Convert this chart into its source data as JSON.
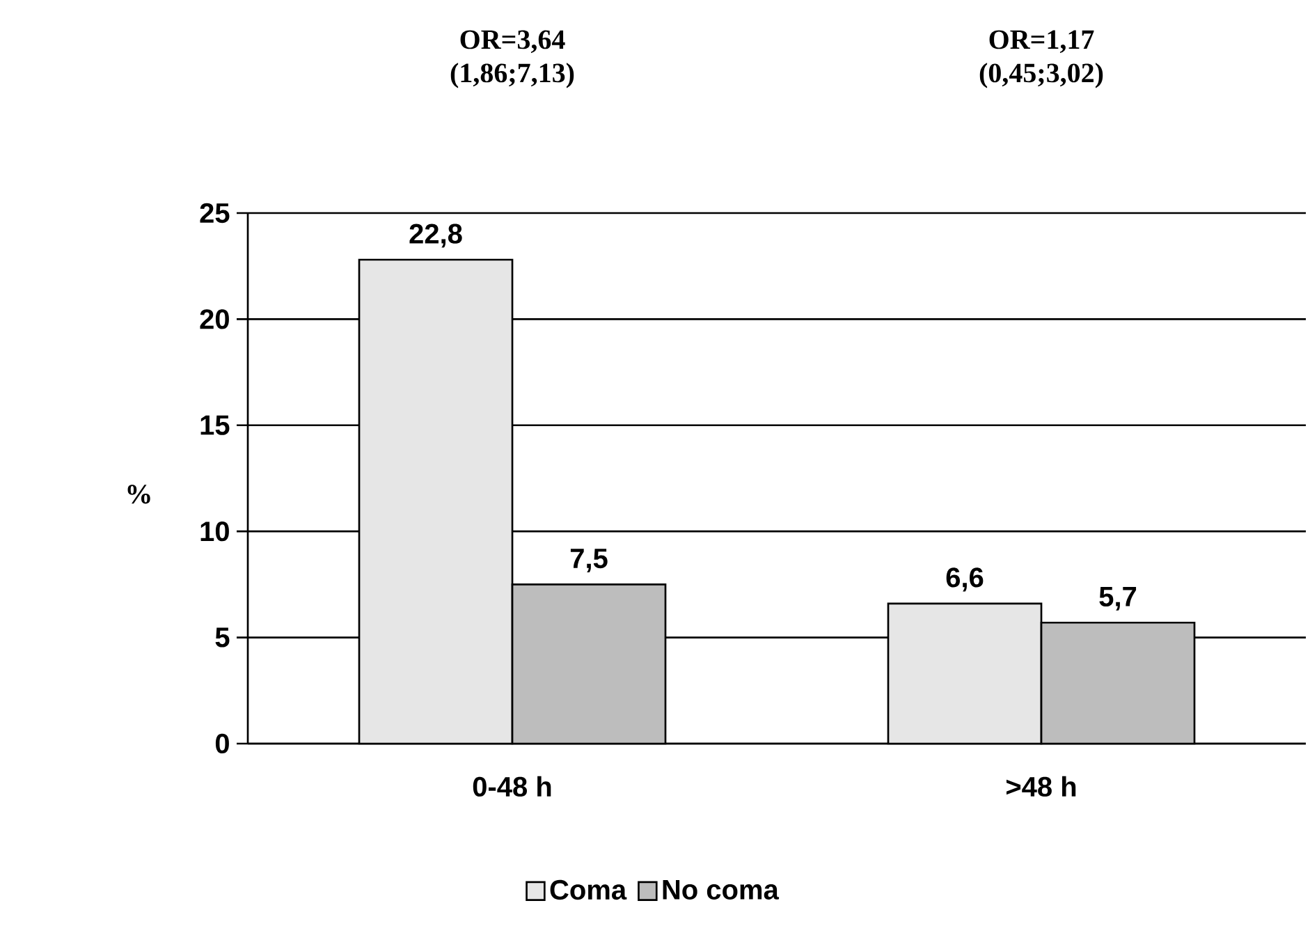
{
  "chart_data": {
    "type": "bar",
    "ylabel": "%",
    "categories": [
      "0-48 h",
      ">48 h"
    ],
    "series": [
      {
        "name": "Coma",
        "color": "#e6e6e6",
        "values": [
          22.8,
          6.6
        ],
        "value_labels": [
          "22,8",
          "6,6"
        ]
      },
      {
        "name": "No coma",
        "color": "#bdbdbd",
        "values": [
          7.5,
          5.7
        ],
        "value_labels": [
          "7,5",
          "5,7"
        ]
      }
    ],
    "ylim": [
      0,
      25
    ],
    "yticks": [
      0,
      5,
      10,
      15,
      20,
      25
    ],
    "grid": "y",
    "legend": "bottom",
    "annotations": [
      "OR=3,64 (1,86;7,13)",
      "OR=1,17 (0,45;3,02)"
    ]
  }
}
